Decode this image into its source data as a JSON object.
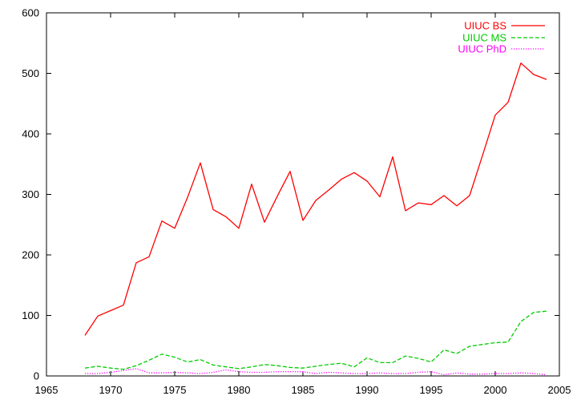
{
  "chart_data": {
    "type": "line",
    "title": "",
    "xlabel": "",
    "ylabel": "",
    "xlim": [
      1965,
      2005
    ],
    "ylim": [
      0,
      600
    ],
    "xticks": [
      1965,
      1970,
      1975,
      1980,
      1985,
      1990,
      1995,
      2000,
      2005
    ],
    "yticks": [
      0,
      100,
      200,
      300,
      400,
      500,
      600
    ],
    "grid": false,
    "legend_position": "top-right",
    "x": [
      1968,
      1969,
      1970,
      1971,
      1972,
      1973,
      1974,
      1975,
      1976,
      1977,
      1978,
      1979,
      1980,
      1981,
      1982,
      1983,
      1984,
      1985,
      1986,
      1987,
      1988,
      1989,
      1990,
      1991,
      1992,
      1993,
      1994,
      1995,
      1996,
      1997,
      1998,
      1999,
      2000,
      2001,
      2002,
      2003,
      2004
    ],
    "series": [
      {
        "name": "UIUC BS",
        "color": "#ff0000",
        "dash": "solid",
        "values": [
          67,
          99,
          108,
          117,
          187,
          197,
          256,
          244,
          295,
          352,
          275,
          263,
          244,
          317,
          254,
          297,
          338,
          257,
          290,
          307,
          325,
          336,
          322,
          296,
          362,
          273,
          286,
          283,
          298,
          281,
          298,
          364,
          431,
          452,
          517,
          498,
          490
        ]
      },
      {
        "name": "UIUC MS",
        "color": "#00cc00",
        "dash": "dashed",
        "values": [
          13,
          16,
          13,
          11,
          17,
          26,
          36,
          31,
          23,
          27,
          18,
          15,
          12,
          15,
          19,
          17,
          14,
          13,
          16,
          19,
          21,
          15,
          30,
          22,
          22,
          33,
          29,
          23,
          43,
          37,
          49,
          52,
          55,
          56,
          90,
          105,
          107
        ]
      },
      {
        "name": "UIUC PhD",
        "color": "#ff00ff",
        "dash": "dotted",
        "values": [
          4,
          4,
          6,
          9,
          12,
          5,
          5,
          6,
          5,
          4,
          6,
          10,
          7,
          6,
          6,
          7,
          7,
          7,
          4,
          6,
          5,
          4,
          4,
          5,
          4,
          4,
          6,
          7,
          2,
          5,
          3,
          3,
          4,
          4,
          5,
          4,
          2
        ]
      }
    ]
  }
}
